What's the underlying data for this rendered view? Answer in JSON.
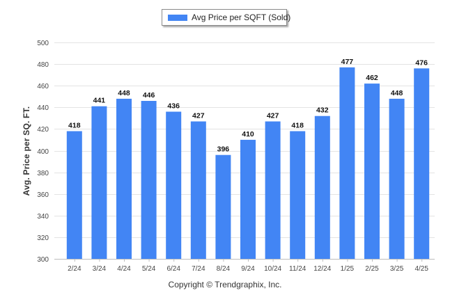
{
  "chart_data": {
    "type": "bar",
    "categories": [
      "2/24",
      "3/24",
      "4/24",
      "5/24",
      "6/24",
      "7/24",
      "8/24",
      "9/24",
      "10/24",
      "11/24",
      "12/24",
      "1/25",
      "2/25",
      "3/25",
      "4/25"
    ],
    "series": [
      {
        "name": "Avg Price per SQFT (Sold)",
        "values": [
          418,
          441,
          448,
          446,
          436,
          427,
          396,
          410,
          427,
          418,
          432,
          477,
          462,
          448,
          476
        ]
      }
    ],
    "ylabel": "Avg. Price per SQ. FT.",
    "ylim": [
      300,
      500
    ],
    "yticks": [
      300,
      320,
      340,
      360,
      380,
      400,
      420,
      440,
      460,
      480,
      500
    ],
    "grid": true,
    "legend_position": "top-center",
    "bar_color": "#4285f4"
  },
  "footer": {
    "copyright": "Copyright © Trendgraphix, Inc."
  }
}
